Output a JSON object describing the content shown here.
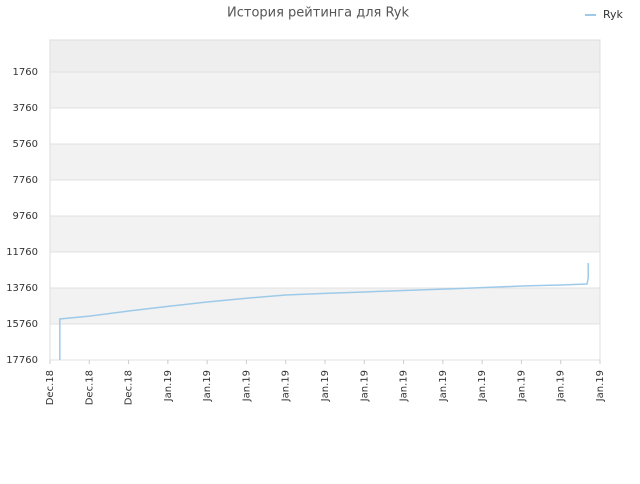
{
  "chart_data": {
    "type": "line",
    "title": "История рейтинга для Ryk",
    "x": [
      0.25,
      0.25,
      1,
      2,
      3,
      4,
      5,
      6,
      7,
      8,
      9,
      10,
      11,
      12,
      13,
      13.67,
      13.7,
      13.7
    ],
    "series": [
      {
        "name": "Ryk",
        "color": "#9ecae9",
        "values": [
          17760,
          15480,
          15320,
          15040,
          14780,
          14540,
          14330,
          14150,
          14060,
          13980,
          13900,
          13820,
          13740,
          13650,
          13590,
          13540,
          13200,
          12370
        ]
      }
    ],
    "ylim": [
      17760,
      -18
    ],
    "yticks": [
      1760,
      3760,
      5760,
      7760,
      9760,
      11760,
      13760,
      15760,
      17760
    ],
    "xlim": [
      0,
      14
    ],
    "xticks": [
      {
        "value": 0,
        "label": "Dec.18"
      },
      {
        "value": 1,
        "label": "Dec.18"
      },
      {
        "value": 2,
        "label": "Dec.18"
      },
      {
        "value": 3,
        "label": "Jan.19"
      },
      {
        "value": 4,
        "label": "Jan.19"
      },
      {
        "value": 5,
        "label": "Jan.19"
      },
      {
        "value": 6,
        "label": "Jan.19"
      },
      {
        "value": 7,
        "label": "Jan.19"
      },
      {
        "value": 8,
        "label": "Jan.19"
      },
      {
        "value": 9,
        "label": "Jan.19"
      },
      {
        "value": 10,
        "label": "Jan.19"
      },
      {
        "value": 11,
        "label": "Jan.19"
      },
      {
        "value": 12,
        "label": "Jan.19"
      },
      {
        "value": 13,
        "label": "Jan.19"
      },
      {
        "value": 14,
        "label": "Jan.19"
      }
    ],
    "grid": true,
    "legend": "top-right"
  }
}
